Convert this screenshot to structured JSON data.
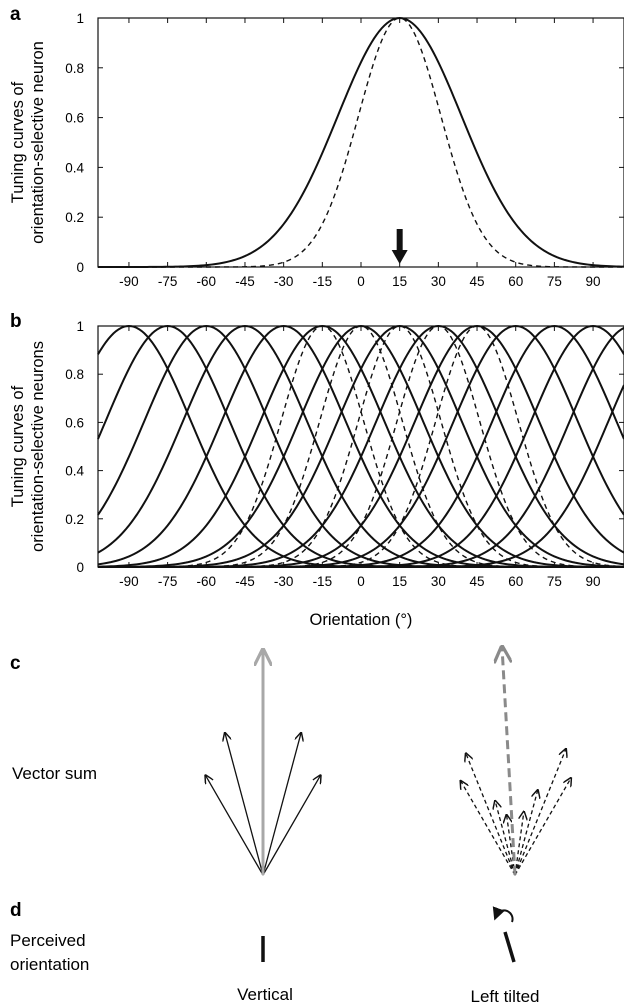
{
  "chart_data": [
    {
      "panel": "a",
      "type": "line",
      "ylabel": [
        "Tuning curves of",
        "orientation-selective neuron"
      ],
      "xlabel": "",
      "xticks": [
        -90,
        -75,
        -60,
        -45,
        -30,
        -15,
        0,
        15,
        30,
        45,
        60,
        75,
        90
      ],
      "yticks": [
        "0",
        "0.2",
        "0.4",
        "0.6",
        "0.8",
        "1"
      ],
      "xlim": [
        -102,
        102
      ],
      "ylim": [
        0,
        1
      ],
      "marker": {
        "x": 15,
        "symbol": "down-arrow"
      },
      "series": [
        {
          "style": "solid",
          "function": "gaussian",
          "peak_x": 15,
          "peak_y": 1,
          "sigma": 24
        },
        {
          "style": "dashed",
          "function": "gaussian",
          "peak_x": 15,
          "peak_y": 1,
          "sigma": 16
        }
      ]
    },
    {
      "panel": "b",
      "type": "line",
      "ylabel": [
        "Tuning curves of",
        "orientation-selective neurons"
      ],
      "xlabel": "Orientation (°)",
      "xticks": [
        -90,
        -75,
        -60,
        -45,
        -30,
        -15,
        0,
        15,
        30,
        45,
        60,
        75,
        90
      ],
      "yticks": [
        "0",
        "0.2",
        "0.4",
        "0.6",
        "0.8",
        "1"
      ],
      "xlim": [
        -102,
        102
      ],
      "ylim": [
        0,
        1
      ],
      "series": [
        {
          "style": "solid",
          "function": "gaussian-family",
          "peaks_x": [
            -90,
            -75,
            -60,
            -45,
            -30,
            -15,
            0,
            15,
            30,
            45,
            60,
            75,
            90,
            105,
            120
          ],
          "sigma": 24
        },
        {
          "style": "dashed",
          "function": "gaussian-family",
          "peaks_x": [
            -15,
            0,
            15,
            30,
            45
          ],
          "sigma": 16
        }
      ]
    }
  ],
  "panel_c": {
    "letter": "c",
    "row_label": "Vector sum",
    "left": {
      "resultant_color": "#a8a8a8",
      "component_style": "solid",
      "component_angles_deg": [
        -30,
        -15,
        15,
        30
      ],
      "component_lengths": [
        0.72,
        0.92,
        0.92,
        0.72
      ]
    },
    "right": {
      "resultant_color": "#8a8a8a",
      "component_style": "dashed",
      "component_angles_deg": [
        -30,
        -22,
        -15,
        -8,
        8,
        15,
        22,
        30
      ],
      "component_lengths": [
        0.68,
        0.82,
        0.48,
        0.38,
        0.4,
        0.55,
        0.85,
        0.7
      ]
    }
  },
  "panel_d": {
    "letter": "d",
    "row_label": [
      "Perceived",
      "orientation"
    ],
    "left_caption": "Vertical",
    "right_caption": "Left tilted"
  }
}
